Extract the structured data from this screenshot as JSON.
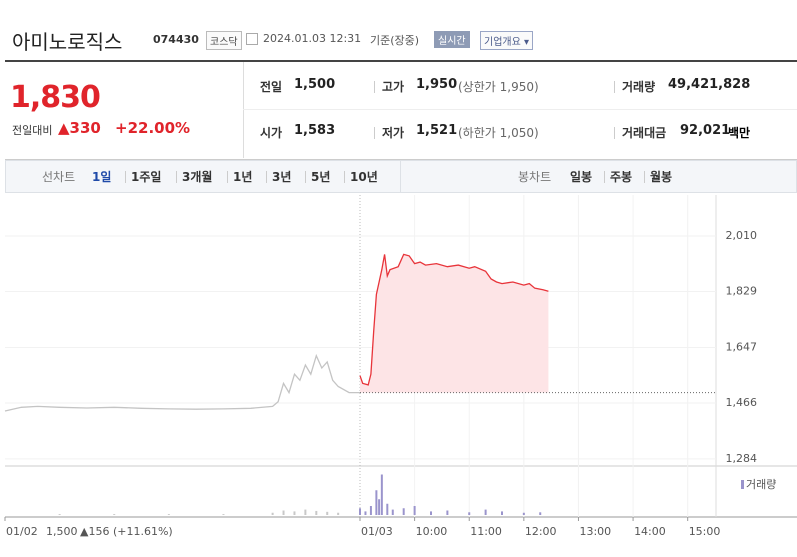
{
  "header": {
    "name": "아미노로직스",
    "code": "074430",
    "market": "코스닥",
    "time": "2024.01.03 12:31",
    "time_note": "기준(장중)",
    "realtime": "실시간",
    "company": "기업개요"
  },
  "quote": {
    "price": "1,830",
    "change_label": "전일대비",
    "change": "▲330",
    "change_rate": "+22.00%"
  },
  "stats": [
    {
      "label": "전일",
      "value": "1,500"
    },
    {
      "label": "고가",
      "value": "1,950",
      "note": "(상한가 1,950)"
    },
    {
      "label": "거래량",
      "value": "49,421,828"
    },
    {
      "label": "시가",
      "value": "1,583"
    },
    {
      "label": "저가",
      "value": "1,521",
      "note": "(하한가 1,050)"
    },
    {
      "label": "거래대금",
      "value": "92,021",
      "unit": "백만"
    }
  ],
  "tabs": {
    "line_label": "선차트",
    "line_periods": [
      "1일",
      "1주일",
      "3개월",
      "1년",
      "3년",
      "5년",
      "10년"
    ],
    "candle_label": "봉차트",
    "candle_periods": [
      "일봉",
      "주봉",
      "월봉"
    ]
  },
  "chart_data": [
    {
      "type": "line",
      "color": "#c4c4c4",
      "xlim": [
        9,
        15.5
      ],
      "ylim": [
        1261,
        2088
      ],
      "x": [
        9.0,
        9.3,
        9.6,
        10.0,
        10.5,
        11.0,
        11.5,
        12.0,
        12.5,
        13.0,
        13.5,
        13.9,
        14.0,
        14.1,
        14.2,
        14.3,
        14.4,
        14.5,
        14.6,
        14.7,
        14.8,
        14.9,
        15.0,
        15.1,
        15.3,
        15.5
      ],
      "values": [
        1440,
        1452,
        1455,
        1452,
        1450,
        1452,
        1449,
        1447,
        1446,
        1447,
        1449,
        1455,
        1470,
        1530,
        1500,
        1560,
        1540,
        1590,
        1560,
        1620,
        1580,
        1600,
        1540,
        1520,
        1500,
        1500
      ],
      "xticks": [
        {
          "value": 9,
          "label": "01/02"
        }
      ],
      "close": "1,500",
      "close_change": "▲156 (+11.61%)"
    },
    {
      "type": "line",
      "color": "#e8343a",
      "fill": "#fde4e6",
      "xlim": [
        9,
        15.5
      ],
      "ylim": [
        1261,
        2088
      ],
      "base": 1500,
      "x": [
        9.0,
        9.05,
        9.15,
        9.2,
        9.25,
        9.3,
        9.35,
        9.4,
        9.45,
        9.5,
        9.55,
        9.7,
        9.8,
        9.9,
        10.0,
        10.1,
        10.2,
        10.4,
        10.6,
        10.8,
        11.0,
        11.1,
        11.3,
        11.4,
        11.5,
        11.6,
        11.8,
        12.0,
        12.1,
        12.2,
        12.35,
        12.45
      ],
      "values": [
        1555,
        1530,
        1525,
        1560,
        1700,
        1820,
        1860,
        1900,
        1950,
        1880,
        1900,
        1910,
        1950,
        1945,
        1920,
        1925,
        1915,
        1920,
        1910,
        1915,
        1905,
        1910,
        1895,
        1870,
        1860,
        1855,
        1860,
        1850,
        1855,
        1840,
        1835,
        1830
      ],
      "yticks": [
        {
          "value": 2010,
          "label": "2,010"
        },
        {
          "value": 1829,
          "label": "1,829"
        },
        {
          "value": 1647,
          "label": "1,647"
        },
        {
          "value": 1466,
          "label": "1,466"
        },
        {
          "value": 1284,
          "label": "1,284"
        }
      ],
      "xticks": [
        {
          "value": 9,
          "label": "01/03"
        },
        {
          "value": 10,
          "label": "10:00"
        },
        {
          "value": 11,
          "label": "11:00"
        },
        {
          "value": 12,
          "label": "12:00"
        },
        {
          "value": 13,
          "label": "13:00"
        },
        {
          "value": 14,
          "label": "14:00"
        },
        {
          "value": 15,
          "label": "15:00"
        }
      ]
    }
  ],
  "volume": {
    "label": "거래량",
    "ylim": [
      0,
      100
    ],
    "prev": {
      "color": "#c8c8c8",
      "x": [
        10,
        11,
        12,
        13,
        13.9,
        14.1,
        14.3,
        14.5,
        14.7,
        14.9,
        15.1
      ],
      "values": [
        2,
        2,
        2,
        2,
        5,
        10,
        8,
        12,
        9,
        7,
        5
      ]
    },
    "today": {
      "color": "#9a94cc",
      "x": [
        9.0,
        9.1,
        9.2,
        9.3,
        9.35,
        9.4,
        9.5,
        9.6,
        9.8,
        10.0,
        10.3,
        10.6,
        11.0,
        11.3,
        11.6,
        12.0,
        12.3
      ],
      "values": [
        15,
        8,
        20,
        55,
        35,
        90,
        25,
        12,
        15,
        20,
        8,
        10,
        6,
        12,
        8,
        5,
        6
      ]
    }
  }
}
